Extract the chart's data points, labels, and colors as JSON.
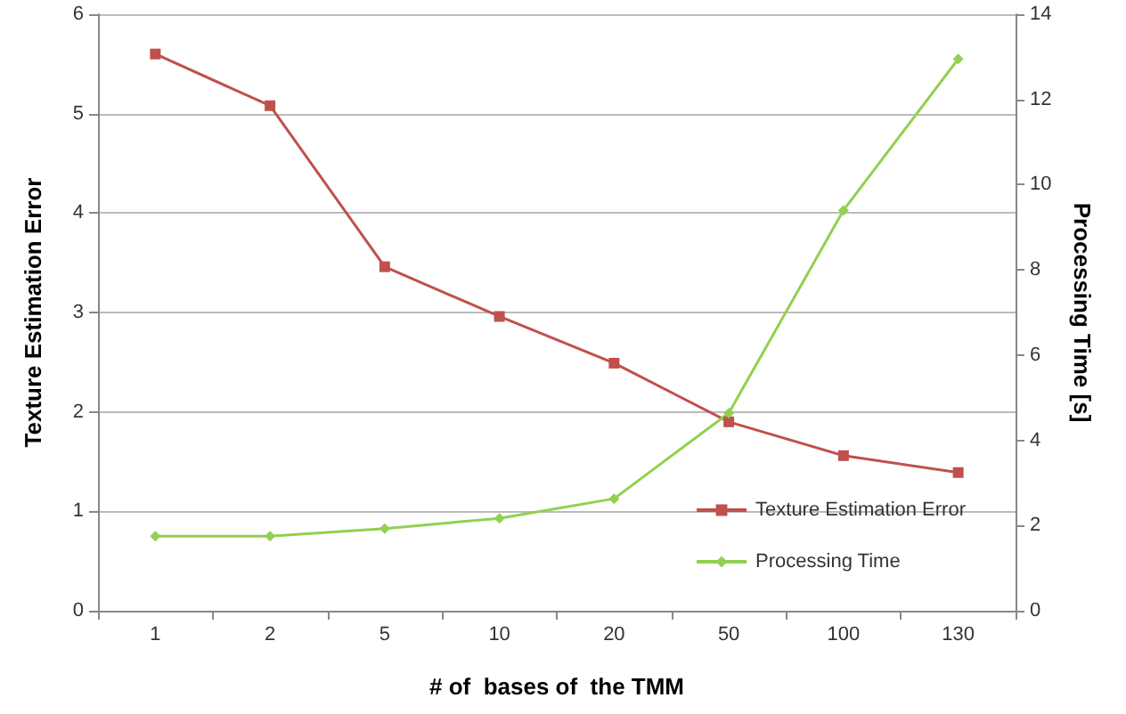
{
  "chart_data": {
    "type": "line",
    "xlabel": "# of  bases of  the TMM",
    "ylabel": "Texture Estimation Error",
    "y2label": "Processing Time [s]",
    "categories": [
      "1",
      "2",
      "5",
      "10",
      "20",
      "50",
      "100",
      "130"
    ],
    "series": [
      {
        "name": "Texture Estimation Error",
        "color": "#c0504d",
        "marker": "square",
        "values": [
          5.6,
          5.08,
          3.46,
          2.96,
          2.49,
          1.9,
          1.56,
          1.39
        ]
      },
      {
        "name": "Processing Time",
        "color": "#92d050",
        "marker": "diamond",
        "axis": "y2",
        "values": [
          1.75,
          1.75,
          1.93,
          2.17,
          2.63,
          4.64,
          9.4,
          12.95
        ]
      }
    ],
    "ylim": [
      0,
      6
    ],
    "yticks": [
      0,
      1,
      2,
      3,
      4,
      5,
      6
    ],
    "y2lim": [
      0,
      14
    ],
    "y2ticks": [
      0,
      2,
      4,
      6,
      8,
      10,
      12,
      14
    ],
    "grid": "y",
    "legend": "bottom right",
    "line_style": "solid"
  }
}
